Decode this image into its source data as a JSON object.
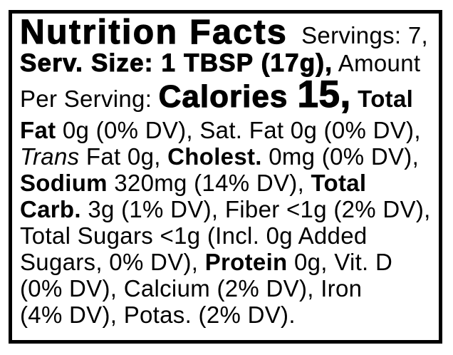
{
  "colors": {
    "background": "#ffffff",
    "border": "#000000",
    "text": "#000000"
  },
  "label": {
    "lines": [
      {
        "kind": "title",
        "segments": [
          {
            "text": "Nutrition Facts",
            "style": "title"
          },
          {
            "text": "  Servings: 7,",
            "style": "r"
          }
        ]
      },
      {
        "kind": "serv",
        "segments": [
          {
            "text": "Serv. Size: 1 TBSP (17g),",
            "style": "heavy"
          },
          {
            "text": " Amount",
            "style": "r"
          }
        ]
      },
      {
        "kind": "calories",
        "segments": [
          {
            "text": "Per Serving: ",
            "style": "r"
          },
          {
            "text": "Calories ",
            "style": "cal"
          },
          {
            "text": "15,",
            "style": "calnum"
          },
          {
            "text": " Total",
            "style": "b"
          }
        ]
      },
      {
        "kind": "body",
        "segments": [
          {
            "text": "Fat",
            "style": "b"
          },
          {
            "text": " 0g (0% DV), Sat. Fat 0g (0% DV),",
            "style": "r"
          }
        ]
      },
      {
        "kind": "body",
        "segments": [
          {
            "text": "Trans",
            "style": "i"
          },
          {
            "text": " Fat 0g, ",
            "style": "r"
          },
          {
            "text": "Cholest.",
            "style": "b"
          },
          {
            "text": " 0mg (0% DV),",
            "style": "r"
          }
        ]
      },
      {
        "kind": "body",
        "segments": [
          {
            "text": "Sodium",
            "style": "b"
          },
          {
            "text": " 320mg (14% DV), ",
            "style": "r"
          },
          {
            "text": "Total",
            "style": "b"
          }
        ]
      },
      {
        "kind": "body",
        "segments": [
          {
            "text": "Carb.",
            "style": "b"
          },
          {
            "text": " 3g (1% DV), Fiber <1g (2% DV),",
            "style": "r"
          }
        ]
      },
      {
        "kind": "body",
        "segments": [
          {
            "text": "Total Sugars <1g (Incl. 0g Added",
            "style": "r"
          }
        ]
      },
      {
        "kind": "body",
        "segments": [
          {
            "text": "Sugars, 0% DV), ",
            "style": "r"
          },
          {
            "text": "Protein",
            "style": "b"
          },
          {
            "text": " 0g, Vit. D",
            "style": "r"
          }
        ]
      },
      {
        "kind": "body",
        "segments": [
          {
            "text": "(0% DV), Calcium (2% DV), Iron",
            "style": "r"
          }
        ]
      },
      {
        "kind": "body",
        "segments": [
          {
            "text": "(4% DV), Potas. (2% DV).",
            "style": "r"
          }
        ]
      }
    ]
  }
}
